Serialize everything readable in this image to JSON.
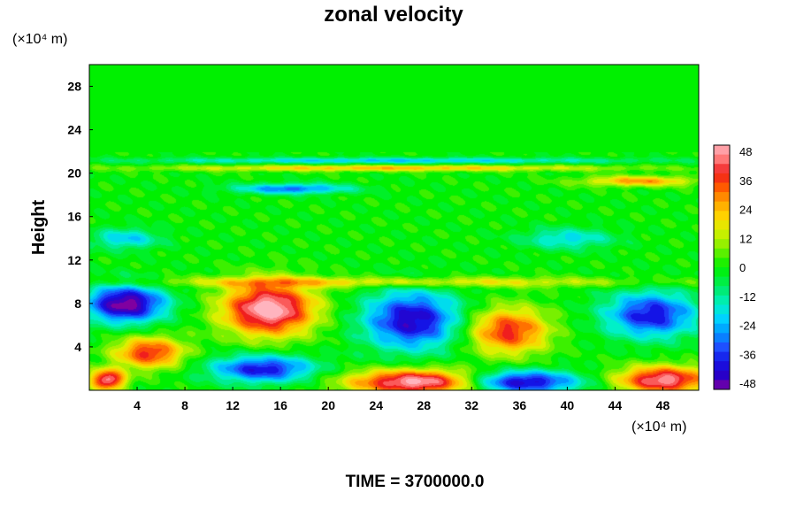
{
  "chart_data": {
    "type": "heatmap",
    "title": "zonal velocity",
    "ylabel": "Height",
    "xlabel": "",
    "x_unit": "(×10⁴ m)",
    "y_unit": "(×10⁴ m)",
    "xlim": [
      0,
      51
    ],
    "ylim": [
      0,
      30
    ],
    "x_ticks": [
      4,
      8,
      12,
      16,
      20,
      24,
      28,
      32,
      36,
      40,
      44,
      48
    ],
    "y_ticks": [
      4,
      8,
      12,
      16,
      20,
      24,
      28
    ],
    "colorbar": {
      "min": -48,
      "max": 48,
      "step": 4,
      "tick_labels": [
        48,
        36,
        24,
        12,
        0,
        -12,
        -24,
        -36,
        -48
      ]
    },
    "field_features": [
      {
        "x": 3,
        "y": 8,
        "rx": 3.5,
        "ry": 1.8,
        "value": -54
      },
      {
        "x": 5,
        "y": 3.5,
        "rx": 3,
        "ry": 1.5,
        "value": 40
      },
      {
        "x": 15,
        "y": 7.5,
        "rx": 4,
        "ry": 2.5,
        "value": 56
      },
      {
        "x": 14.5,
        "y": 2,
        "rx": 4.5,
        "ry": 1.3,
        "value": -42
      },
      {
        "x": 27,
        "y": 6.5,
        "rx": 4.2,
        "ry": 2.8,
        "value": -46
      },
      {
        "x": 27.5,
        "y": 0.8,
        "rx": 6,
        "ry": 1.2,
        "value": 54
      },
      {
        "x": 35,
        "y": 5.5,
        "rx": 3.5,
        "ry": 2.2,
        "value": 40
      },
      {
        "x": 36,
        "y": 0.8,
        "rx": 5,
        "ry": 1.1,
        "value": -50
      },
      {
        "x": 47,
        "y": 7,
        "rx": 4,
        "ry": 2.2,
        "value": -42
      },
      {
        "x": 48,
        "y": 1,
        "rx": 4,
        "ry": 1.3,
        "value": 50
      },
      {
        "x": 1.5,
        "y": 1,
        "rx": 1.5,
        "ry": 1,
        "value": 50
      },
      {
        "x": 17,
        "y": 18.6,
        "rx": 5,
        "ry": 0.5,
        "value": -32
      },
      {
        "x": 46,
        "y": 19.3,
        "rx": 5,
        "ry": 0.5,
        "value": 28
      },
      {
        "x": 25,
        "y": 20.5,
        "rx": 20,
        "ry": 0.3,
        "value": 24
      },
      {
        "x": 25,
        "y": 21.2,
        "rx": 22,
        "ry": 0.3,
        "value": -22
      },
      {
        "x": 25,
        "y": 10,
        "rx": 24,
        "ry": 0.5,
        "value": 20
      },
      {
        "x": 3,
        "y": 14,
        "rx": 3,
        "ry": 1,
        "value": -22
      },
      {
        "x": 40,
        "y": 14,
        "rx": 4,
        "ry": 1,
        "value": -20
      }
    ],
    "time_label": "TIME = 3700000.0"
  }
}
